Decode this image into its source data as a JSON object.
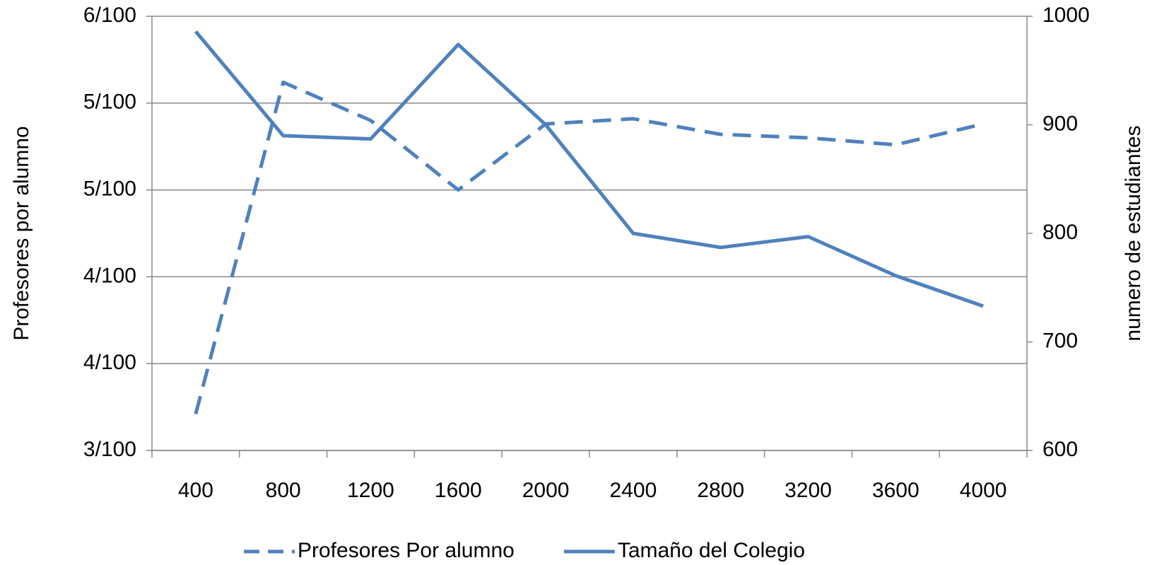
{
  "chart_data": {
    "type": "line",
    "categories": [
      "400",
      "800",
      "1200",
      "1600",
      "2000",
      "2400",
      "2800",
      "3200",
      "3600",
      "4000"
    ],
    "ylabel": "Profesores por alumno",
    "y2label": "numero de estudiantes",
    "ylim": [
      0.03,
      0.055
    ],
    "yticks": [
      {
        "value": 0.03,
        "label": "3/100"
      },
      {
        "value": 0.035,
        "label": "4/100"
      },
      {
        "value": 0.04,
        "label": "4/100"
      },
      {
        "value": 0.045,
        "label": "5/100"
      },
      {
        "value": 0.05,
        "label": "5/100"
      },
      {
        "value": 0.055,
        "label": "6/100"
      }
    ],
    "y2lim": [
      600,
      1000
    ],
    "y2ticks": [
      600,
      700,
      800,
      900,
      1000
    ],
    "grid": true,
    "legend": "bottom",
    "series": [
      {
        "name": "Profesores Por alumno",
        "color": "#4f81bd",
        "dash": true,
        "values": [
          0.0321,
          0.0512,
          0.049,
          0.045,
          0.0488,
          0.0491,
          0.0482,
          0.048,
          0.0476,
          0.0488
        ]
      },
      {
        "name": "Tamaño del Colegio",
        "color": "#4f81bd",
        "dash": false,
        "axis": "y2",
        "values": [
          986,
          890,
          887,
          974,
          900,
          800,
          787,
          797,
          761,
          733
        ]
      }
    ]
  }
}
